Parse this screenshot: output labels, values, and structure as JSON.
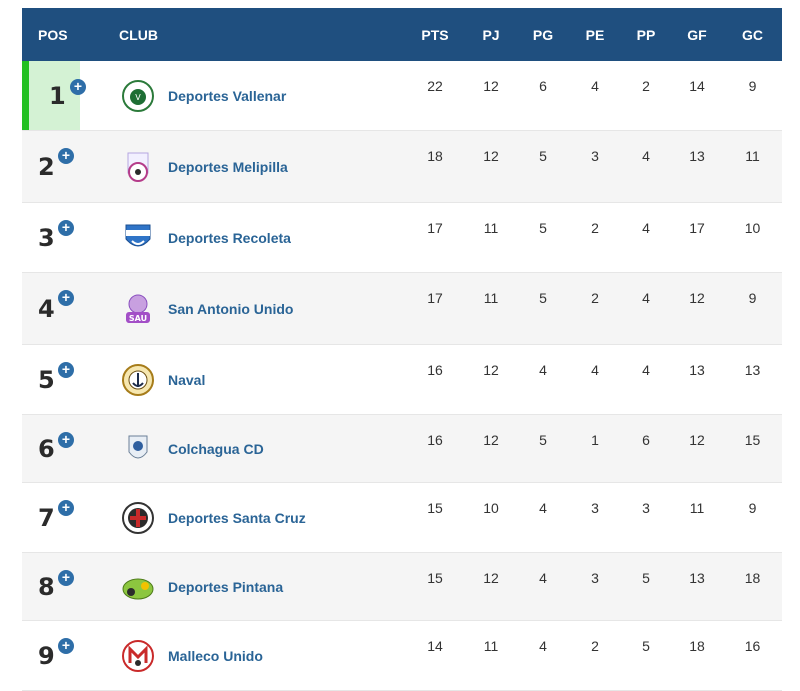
{
  "header": {
    "pos": "POS",
    "club": "CLUB",
    "cols": [
      "PTS",
      "PJ",
      "PG",
      "PE",
      "PP",
      "GF",
      "GC"
    ]
  },
  "colors": {
    "header_bg": "#1f4f7f",
    "leader_marker": "#22c022",
    "link": "#2a6496"
  },
  "rows": [
    {
      "pos": "1",
      "club": "Deportes Vallenar",
      "crest_icon": "deportes-vallenar-crest-icon",
      "stats": [
        "22",
        "12",
        "6",
        "4",
        "2",
        "14",
        "9"
      ]
    },
    {
      "pos": "2",
      "club": "Deportes Melipilla",
      "crest_icon": "deportes-melipilla-crest-icon",
      "stats": [
        "18",
        "12",
        "5",
        "3",
        "4",
        "13",
        "11"
      ]
    },
    {
      "pos": "3",
      "club": "Deportes Recoleta",
      "crest_icon": "deportes-recoleta-crest-icon",
      "stats": [
        "17",
        "11",
        "5",
        "2",
        "4",
        "17",
        "10"
      ]
    },
    {
      "pos": "4",
      "club": "San Antonio Unido",
      "crest_icon": "san-antonio-unido-crest-icon",
      "stats": [
        "17",
        "11",
        "5",
        "2",
        "4",
        "12",
        "9"
      ]
    },
    {
      "pos": "5",
      "club": "Naval",
      "crest_icon": "naval-crest-icon",
      "stats": [
        "16",
        "12",
        "4",
        "4",
        "4",
        "13",
        "13"
      ]
    },
    {
      "pos": "6",
      "club": "Colchagua CD",
      "crest_icon": "colchagua-crest-icon",
      "stats": [
        "16",
        "12",
        "5",
        "1",
        "6",
        "12",
        "15"
      ]
    },
    {
      "pos": "7",
      "club": "Deportes Santa Cruz",
      "crest_icon": "deportes-santa-cruz-crest-icon",
      "stats": [
        "15",
        "10",
        "4",
        "3",
        "3",
        "11",
        "9"
      ]
    },
    {
      "pos": "8",
      "club": "Deportes Pintana",
      "crest_icon": "deportes-pintana-crest-icon",
      "stats": [
        "15",
        "12",
        "4",
        "3",
        "5",
        "13",
        "18"
      ]
    },
    {
      "pos": "9",
      "club": "Malleco Unido",
      "crest_icon": "malleco-unido-crest-icon",
      "stats": [
        "14",
        "11",
        "4",
        "2",
        "5",
        "18",
        "16"
      ]
    }
  ]
}
